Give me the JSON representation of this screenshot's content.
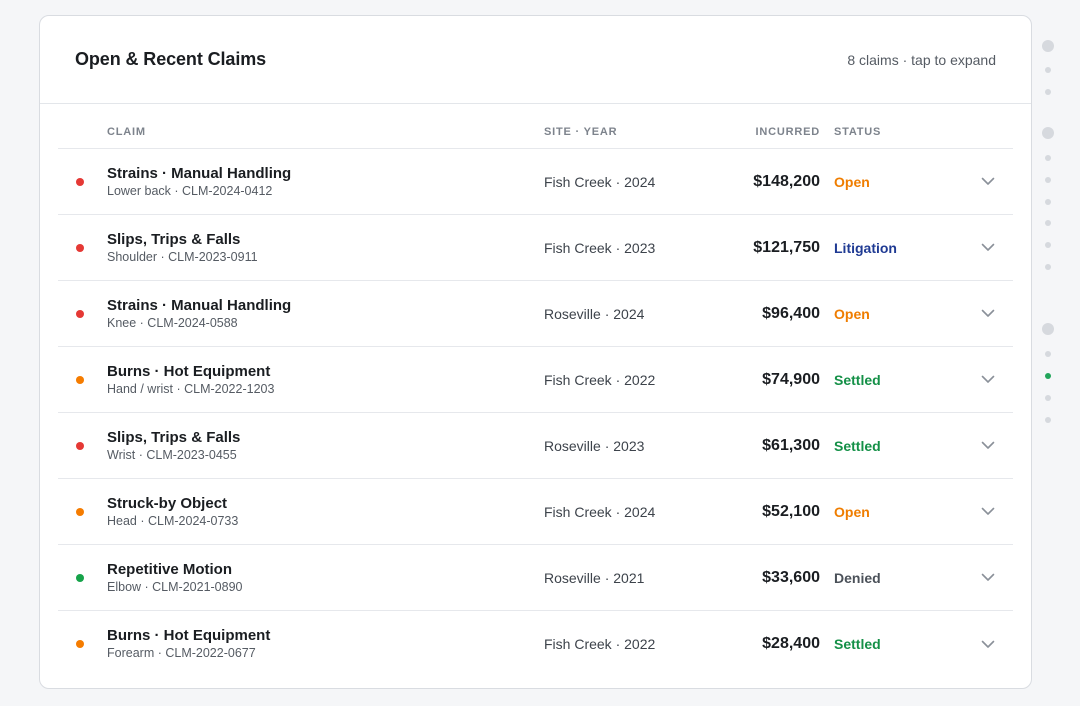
{
  "header": {
    "title": "Open & Recent Claims",
    "meta": "8 claims · tap to expand"
  },
  "columns": {
    "claim": "CLAIM",
    "site_year": "SITE · YEAR",
    "incurred": "INCURRED",
    "status": "STATUS"
  },
  "colors": {
    "severity_red": "#e53935",
    "severity_orange": "#f57c00",
    "severity_green": "#16a34a",
    "status_open": "#ef7d00",
    "status_litigation": "#1f3a93",
    "status_settled": "#149047",
    "status_denied": "#4b5159",
    "pager_active": "#22a55b",
    "pager_inactive": "#d6d9de"
  },
  "rows": [
    {
      "severity": "red",
      "name": "Strains · Manual Handling",
      "sub": "Lower back · CLM-2024-0412",
      "site": "Fish Creek · 2024",
      "incurred": "$148,200",
      "status": "Open",
      "status_kind": "open"
    },
    {
      "severity": "red",
      "name": "Slips, Trips & Falls",
      "sub": "Shoulder · CLM-2023-0911",
      "site": "Fish Creek · 2023",
      "incurred": "$121,750",
      "status": "Litigation",
      "status_kind": "litigation"
    },
    {
      "severity": "red",
      "name": "Strains · Manual Handling",
      "sub": "Knee · CLM-2024-0588",
      "site": "Roseville · 2024",
      "incurred": "$96,400",
      "status": "Open",
      "status_kind": "open"
    },
    {
      "severity": "orange",
      "name": "Burns · Hot Equipment",
      "sub": "Hand / wrist · CLM-2022-1203",
      "site": "Fish Creek · 2022",
      "incurred": "$74,900",
      "status": "Settled",
      "status_kind": "settled"
    },
    {
      "severity": "red",
      "name": "Slips, Trips & Falls",
      "sub": "Wrist · CLM-2023-0455",
      "site": "Roseville · 2023",
      "incurred": "$61,300",
      "status": "Settled",
      "status_kind": "settled"
    },
    {
      "severity": "orange",
      "name": "Struck-by Object",
      "sub": "Head · CLM-2024-0733",
      "site": "Fish Creek · 2024",
      "incurred": "$52,100",
      "status": "Open",
      "status_kind": "open"
    },
    {
      "severity": "green",
      "name": "Repetitive Motion",
      "sub": "Elbow · CLM-2021-0890",
      "site": "Roseville · 2021",
      "incurred": "$33,600",
      "status": "Denied",
      "status_kind": "denied"
    },
    {
      "severity": "orange",
      "name": "Burns · Hot Equipment",
      "sub": "Forearm · CLM-2022-0677",
      "site": "Fish Creek · 2022",
      "incurred": "$28,400",
      "status": "Settled",
      "status_kind": "settled"
    }
  ],
  "pager": {
    "dots": [
      "large",
      "small",
      "small",
      "large",
      "small",
      "small",
      "small",
      "small",
      "small",
      "small",
      "large",
      "small",
      "active",
      "small",
      "small"
    ]
  }
}
